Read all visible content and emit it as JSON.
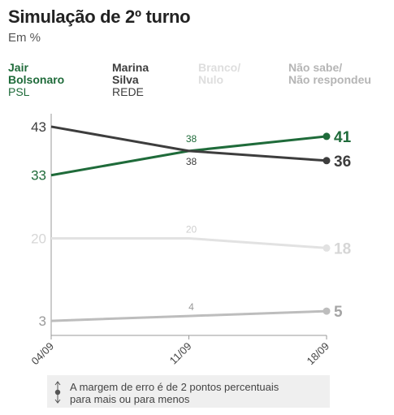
{
  "header": {
    "title": "Simulação de 2º turno",
    "subtitle": "Em %"
  },
  "legend": [
    {
      "name": "Jair\nBolsonaro",
      "party": "PSL",
      "color": "#1f6b3a"
    },
    {
      "name": "Marina\nSilva",
      "party": "REDE",
      "color": "#3d3d3d"
    },
    {
      "name": "Branco/\nNulo",
      "party": "",
      "color": "#e2e2e2"
    },
    {
      "name": "Não sabe/\nNão respondeu",
      "party": "",
      "color": "#bdbdbd"
    }
  ],
  "chart_data": {
    "type": "line",
    "x": [
      "04/09",
      "11/09",
      "18/09"
    ],
    "series": [
      {
        "name": "Jair Bolsonaro",
        "values": [
          33,
          38,
          41
        ],
        "color": "#1f6b3a"
      },
      {
        "name": "Marina Silva",
        "values": [
          43,
          38,
          36
        ],
        "color": "#3d3d3d"
      },
      {
        "name": "Branco/Nulo",
        "values": [
          20,
          20,
          18
        ],
        "color": "#e2e2e2"
      },
      {
        "name": "Não sabe/Não respondeu",
        "values": [
          3,
          4,
          5
        ],
        "color": "#bdbdbd"
      }
    ],
    "ylim": [
      0,
      45
    ],
    "grid": false
  },
  "note": {
    "text": "A margem de erro é de 2 pontos percentuais\npara mais ou para menos"
  }
}
